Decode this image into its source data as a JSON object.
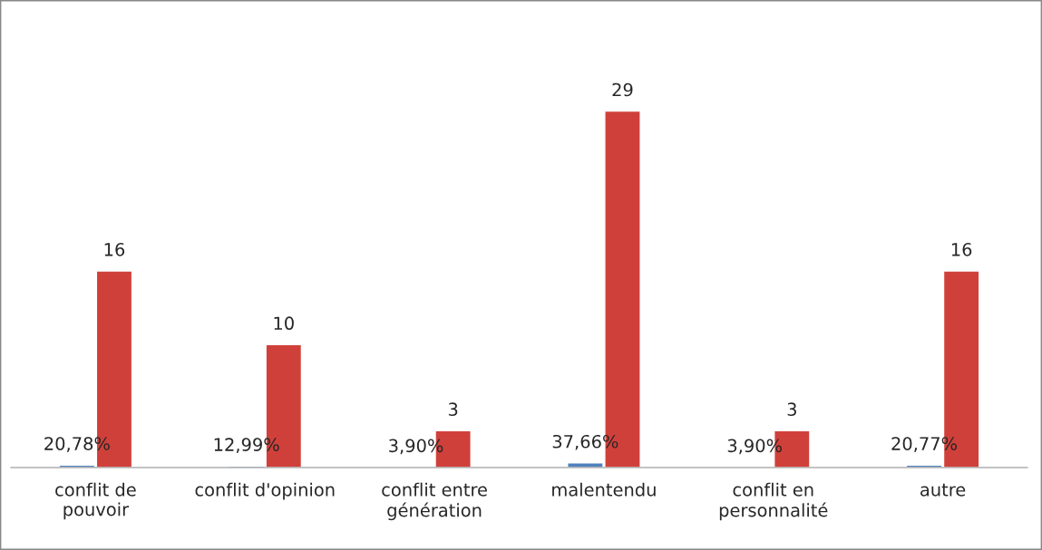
{
  "chart_data": {
    "type": "bar",
    "categories": [
      "conflit de\npouvoir",
      "conflit d'opinion",
      "conflit entre\ngénération",
      "malentendu",
      "conflit en\npersonnalité",
      "autre"
    ],
    "series": [
      {
        "color": "#4f81bd",
        "values": [
          0.2078,
          0.1299,
          0.039,
          0.3766,
          0.039,
          0.2077
        ],
        "value_labels": [
          "20,78%",
          "12,99%",
          "3,90%",
          "37,66%",
          "3,90%",
          "20,77%"
        ]
      },
      {
        "color": "#d0403a",
        "values": [
          16,
          10,
          3,
          29,
          3,
          16
        ],
        "value_labels": [
          "16",
          "10",
          "3",
          "29",
          "3",
          "16"
        ]
      }
    ],
    "grid": false,
    "legend": false
  }
}
